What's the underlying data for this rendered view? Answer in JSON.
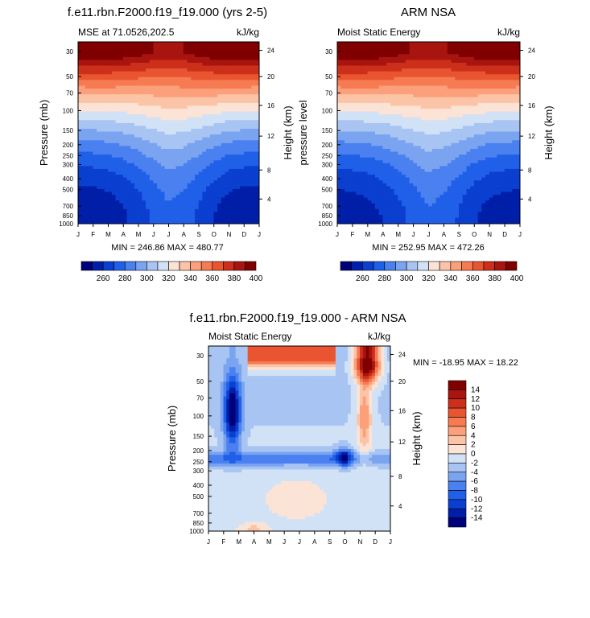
{
  "chart_data": [
    {
      "type": "heatmap",
      "id": "model",
      "title": "f.e11.rbn.F2000.f19_f19.000 (yrs 2-5)",
      "subtitle_left": "MSE at 71.0526,202.5",
      "subtitle_right": "kJ/kg",
      "ylabel": "Pressure (mb)",
      "ylabel_right": "Height (km)",
      "xlabel": "",
      "x_ticks": [
        "J",
        "F",
        "M",
        "A",
        "M",
        "J",
        "J",
        "A",
        "S",
        "O",
        "N",
        "D",
        "J"
      ],
      "y_ticks": [
        "30",
        "50",
        "70",
        "100",
        "150",
        "200",
        "250",
        "300",
        "400",
        "500",
        "700",
        "850",
        "1000"
      ],
      "y_ticks_right": [
        "24",
        "20",
        "16",
        "12",
        "8",
        "4"
      ],
      "min_max": "MIN = 246.86 MAX = 480.77",
      "colorbar_labels": [
        "260",
        "280",
        "300",
        "320",
        "340",
        "360",
        "380",
        "400"
      ],
      "z_bottom_by_month": [
        251,
        252,
        254,
        258,
        264,
        272,
        278,
        275,
        268,
        260,
        254,
        252,
        251
      ],
      "surface_top_by_month": [
        405,
        405,
        404,
        401,
        397,
        392,
        390,
        392,
        397,
        402,
        404,
        405,
        405
      ]
    },
    {
      "type": "heatmap",
      "id": "obs",
      "title": "ARM NSA",
      "subtitle_left": "Moist Static Energy",
      "subtitle_right": "kJ/kg",
      "ylabel": "pressure level",
      "ylabel_right": "Height (km)",
      "xlabel": "",
      "x_ticks": [
        "J",
        "F",
        "M",
        "A",
        "M",
        "J",
        "J",
        "A",
        "S",
        "O",
        "N",
        "D",
        "J"
      ],
      "y_ticks": [
        "30",
        "50",
        "70",
        "100",
        "150",
        "200",
        "250",
        "300",
        "400",
        "500",
        "700",
        "850",
        "1000"
      ],
      "y_ticks_right": [
        "24",
        "20",
        "16",
        "12",
        "8",
        "4"
      ],
      "min_max": "MIN = 252.95 MAX = 472.26",
      "colorbar_labels": [
        "260",
        "280",
        "300",
        "320",
        "340",
        "360",
        "380",
        "400"
      ],
      "z_bottom_by_month": [
        253,
        254,
        256,
        260,
        266,
        273,
        279,
        276,
        269,
        261,
        256,
        254,
        253
      ],
      "surface_top_by_month": [
        404,
        404,
        403,
        400,
        396,
        391,
        389,
        391,
        396,
        401,
        403,
        404,
        404
      ]
    },
    {
      "type": "heatmap",
      "id": "diff",
      "title": "f.e11.rbn.F2000.f19_f19.000 - ARM NSA",
      "subtitle_left": "Moist Static Energy",
      "subtitle_right": "kJ/kg",
      "ylabel": "Pressure (mb)",
      "ylabel_right": "Height (km)",
      "xlabel": "",
      "x_ticks": [
        "J",
        "F",
        "M",
        "A",
        "M",
        "J",
        "J",
        "A",
        "S",
        "O",
        "N",
        "D",
        "J"
      ],
      "y_ticks": [
        "30",
        "50",
        "70",
        "100",
        "150",
        "200",
        "250",
        "300",
        "400",
        "500",
        "700",
        "850",
        "1000"
      ],
      "y_ticks_right": [
        "24",
        "20",
        "16",
        "12",
        "8",
        "4"
      ],
      "min_max": "MIN = -18.95 MAX =  18.22",
      "colorbar_labels": [
        "14",
        "12",
        "10",
        "8",
        "6",
        "4",
        "2",
        "0",
        "-2",
        "-4",
        "-6",
        "-8",
        "-10",
        "-12",
        "-14"
      ]
    }
  ],
  "colors": {
    "warm_cool_16": [
      "#00007a",
      "#001fa8",
      "#0a3fd0",
      "#2060e8",
      "#4a80f0",
      "#7aa4f0",
      "#a8c4f2",
      "#d2e2f6",
      "#fbe3d6",
      "#fcc4a6",
      "#fba07a",
      "#f67a52",
      "#e85530",
      "#cc2f1a",
      "#a81410",
      "#800000"
    ],
    "diff_16": [
      "#00007a",
      "#001fa8",
      "#0a3fd0",
      "#2060e8",
      "#4a80f0",
      "#7aa4f0",
      "#a8c4f2",
      "#d2e2f6",
      "#fbe3d6",
      "#fcc4a6",
      "#fba07a",
      "#f67a52",
      "#e85530",
      "#cc2f1a",
      "#a81410",
      "#800000"
    ]
  }
}
